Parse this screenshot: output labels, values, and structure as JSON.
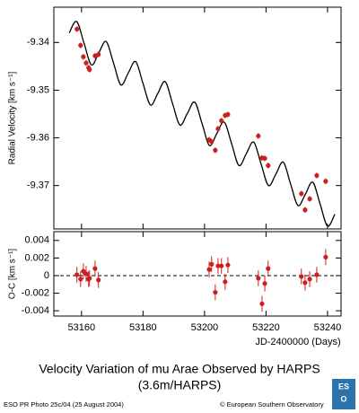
{
  "chart_data": [
    {
      "type": "scatter",
      "y_label": "Radial Velocity [km s⁻¹]",
      "xlim": [
        53151,
        53244.4
      ],
      "xticks": [
        53160,
        53180,
        53200,
        53220,
        53240
      ],
      "ylim": [
        -9.3791,
        -9.3326
      ],
      "yticks": [
        -9.34,
        -9.35,
        -9.36,
        -9.37
      ],
      "series": [
        {
          "color": "#cc1f1f",
          "x": [
            53158.5,
            53159.7,
            53160.6,
            53161.5,
            53162.3,
            53162.6,
            53164.4,
            53165.5,
            53201.5,
            53202.3,
            53203.5,
            53204.4,
            53205.5,
            53206.7,
            53207.6,
            53217.5,
            53218.7,
            53219.6,
            53220.7,
            53231.5,
            53232.7,
            53234.2,
            53236.5,
            53239.4
          ],
          "values": [
            -9.3372,
            -9.3406,
            -9.343,
            -9.3443,
            -9.3453,
            -9.3457,
            -9.3428,
            -9.3425,
            -9.3604,
            -9.3608,
            -9.3626,
            -9.3581,
            -9.3564,
            -9.3553,
            -9.3551,
            -9.3596,
            -9.3642,
            -9.3643,
            -9.3658,
            -9.3717,
            -9.3751,
            -9.3728,
            -9.3679,
            -9.3691
          ],
          "errors": [
            0.0006,
            0.0006,
            0.0006,
            0.0006,
            0.0006,
            0.0006,
            0.0006,
            0.0006,
            0.0006,
            0.0006,
            0.0006,
            0.0006,
            0.0006,
            0.0006,
            0.0006,
            0.0006,
            0.0006,
            0.0006,
            0.0006,
            0.0006,
            0.0006,
            0.0006,
            0.0006,
            0.0006
          ]
        }
      ],
      "model": {
        "color": "#000000",
        "x": [
          53156,
          53158.4,
          53160.8,
          53163.2,
          53165.6,
          53168,
          53170.4,
          53172.8,
          53175.2,
          53177.6,
          53180,
          53182.4,
          53184.8,
          53187.2,
          53189.6,
          53192,
          53194.4,
          53196.8,
          53199.2,
          53201.6,
          53204,
          53206.4,
          53208.8,
          53211.2,
          53213.6,
          53216,
          53218.4,
          53220.8,
          53223.2,
          53225.6,
          53228,
          53230.4,
          53232.8,
          53235.2,
          53237.6,
          53240,
          53242.4
        ],
        "values": [
          -9.338,
          -9.3356,
          -9.3401,
          -9.3447,
          -9.3422,
          -9.3398,
          -9.3443,
          -9.3489,
          -9.3464,
          -9.344,
          -9.3486,
          -9.3531,
          -9.3507,
          -9.3482,
          -9.3528,
          -9.3573,
          -9.3549,
          -9.3525,
          -9.357,
          -9.3616,
          -9.3591,
          -9.3567,
          -9.3612,
          -9.3658,
          -9.3633,
          -9.3609,
          -9.3655,
          -9.37,
          -9.3676,
          -9.3651,
          -9.3697,
          -9.3742,
          -9.3718,
          -9.3693,
          -9.3739,
          -9.3785,
          -9.376
        ]
      }
    },
    {
      "type": "scatter",
      "y_label": "O-C [km s⁻¹]",
      "x_label": "JD-2400000 (Days)",
      "xlim": [
        53151,
        53244.4
      ],
      "xticks": [
        53160,
        53180,
        53200,
        53220,
        53240
      ],
      "ylim": [
        -0.0046,
        0.005
      ],
      "yticks": [
        0.004,
        0.002,
        0,
        -0.002,
        -0.004
      ],
      "reference_line": 0,
      "series": [
        {
          "color": "#cc1f1f",
          "x": [
            53158.5,
            53159.7,
            53160.6,
            53161.5,
            53162.3,
            53162.6,
            53164.4,
            53165.5,
            53201.5,
            53202.3,
            53203.5,
            53204.4,
            53205.5,
            53206.7,
            53207.6,
            53217.5,
            53218.7,
            53219.6,
            53220.7,
            53231.5,
            53232.7,
            53234.2,
            53236.5,
            53239.4
          ],
          "values": [
            0.0001,
            -0.0004,
            0.0005,
            0.0002,
            -0.0004,
            -0.0003,
            0.0008,
            -0.0005,
            0.0007,
            0.0013,
            -0.0019,
            0.0011,
            0.0011,
            -0.0007,
            0.0012,
            -0.0003,
            -0.0032,
            -0.0009,
            0.0008,
            -0.0001,
            -0.0008,
            -0.0004,
            0.0001,
            0.0021
          ],
          "errors": [
            0.0009,
            0.0009,
            0.0009,
            0.0009,
            0.0009,
            0.0009,
            0.0009,
            0.0009,
            0.0009,
            0.0009,
            0.0009,
            0.0009,
            0.0009,
            0.0009,
            0.0009,
            0.0009,
            0.0009,
            0.0009,
            0.0009,
            0.0009,
            0.0009,
            0.0009,
            0.0009,
            0.0009
          ]
        }
      ]
    }
  ],
  "caption": {
    "title": "Velocity Variation of  mu Arae Observed by HARPS",
    "subtitle": "(3.6m/HARPS)"
  },
  "footer": {
    "left": "ESO PR Photo 25c/04 (25 August 2004)",
    "right": "© European Southern Observatory"
  },
  "logo": {
    "top": "ES",
    "bottom": "O"
  }
}
